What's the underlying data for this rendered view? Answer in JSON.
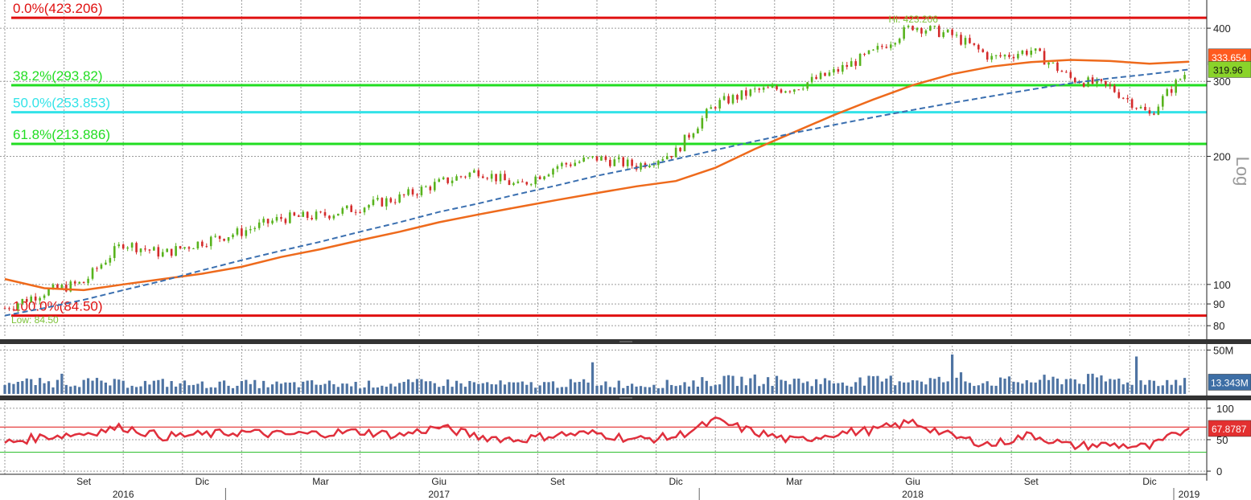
{
  "chart_data": [
    {
      "type": "candlestick",
      "panel": "price",
      "scale": "log",
      "scale_label": "Log",
      "ylim": [
        75,
        450
      ],
      "y_ticks": [
        80,
        90,
        100,
        200,
        300,
        400
      ],
      "grid": true,
      "x": [
        "2016-07",
        "2016-08",
        "2016-09",
        "2016-10",
        "2016-11",
        "2016-12",
        "2017-01",
        "2017-02",
        "2017-03",
        "2017-04",
        "2017-05",
        "2017-06",
        "2017-07",
        "2017-08",
        "2017-09",
        "2017-10",
        "2017-11",
        "2017-12",
        "2018-01",
        "2018-02",
        "2018-03",
        "2018-04",
        "2018-05",
        "2018-06",
        "2018-07",
        "2018-08",
        "2018-09",
        "2018-10",
        "2018-11",
        "2018-12",
        "2019-01"
      ],
      "series": [
        {
          "name": "Price",
          "values": [
            88,
            96,
            101,
            125,
            118,
            126,
            133,
            143,
            145,
            152,
            160,
            173,
            185,
            170,
            190,
            198,
            190,
            205,
            265,
            285,
            290,
            315,
            350,
            405,
            385,
            340,
            355,
            305,
            290,
            250,
            319.96
          ]
        },
        {
          "values": [
            103,
            98,
            97,
            100,
            103,
            106,
            110,
            116,
            121,
            127,
            133,
            140,
            146,
            152,
            158,
            164,
            170,
            175,
            188,
            208,
            228,
            250,
            272,
            294,
            312,
            325,
            333,
            337,
            335,
            330,
            333.65
          ]
        },
        {
          "values": [
            84.5,
            88,
            92,
            97,
            102,
            108,
            114,
            120,
            126,
            133,
            140,
            148,
            155,
            163,
            171,
            180,
            188,
            197,
            207,
            217,
            227,
            237,
            247,
            257,
            267,
            277,
            287,
            297,
            305,
            312,
            319.96
          ]
        }
      ],
      "fib_levels": [
        {
          "label": "0.0%(423.206)",
          "value": 423.206,
          "color": "#e01010"
        },
        {
          "label": "38.2%(293.82)",
          "value": 293.82,
          "color": "#22dd22"
        },
        {
          "label": "50.0%(253.853)",
          "value": 253.853,
          "color": "#33e3e8"
        },
        {
          "label": "61.8%(213.886)",
          "value": 213.886,
          "color": "#22dd22"
        },
        {
          "label": "100.0%(84.50)",
          "value": 84.5,
          "color": "#e01010"
        }
      ],
      "annotations": [
        {
          "text": "Hi: 423.206",
          "x": "2018-06",
          "y": 423.206
        },
        {
          "text": "Low: 84.50",
          "x": "2016-07",
          "y": 84.5
        }
      ],
      "last_value_tags": [
        {
          "text": "333.654",
          "value": 333.654,
          "color": "#ff5a1f"
        },
        {
          "text": "319.96",
          "value": 319.96,
          "color": "#8ad32a"
        }
      ]
    },
    {
      "type": "bar",
      "panel": "volume",
      "ylim": [
        0,
        55
      ],
      "y_ticks": [
        {
          "value": 50,
          "label": "50M"
        }
      ],
      "x": [
        "2016-07",
        "2016-08",
        "2016-09",
        "2016-10",
        "2016-11",
        "2016-12",
        "2017-01",
        "2017-02",
        "2017-03",
        "2017-04",
        "2017-05",
        "2017-06",
        "2017-07",
        "2017-08",
        "2017-09",
        "2017-10",
        "2017-11",
        "2017-12",
        "2018-01",
        "2018-02",
        "2018-03",
        "2018-04",
        "2018-05",
        "2018-06",
        "2018-07",
        "2018-08",
        "2018-09",
        "2018-10",
        "2018-11",
        "2018-12",
        "2019-01"
      ],
      "series": [
        {
          "values": [
            14,
            12,
            13,
            11,
            12,
            10,
            11,
            10,
            11,
            10,
            11,
            12,
            11,
            10,
            11,
            12,
            10,
            11,
            14,
            15,
            14,
            13,
            14,
            16,
            14,
            13,
            14,
            16,
            15,
            14,
            13.343
          ]
        }
      ],
      "last_value_tags": [
        {
          "text": "13.343M",
          "value": 13.343,
          "color": "#3d6ea5"
        }
      ]
    },
    {
      "type": "line",
      "panel": "rsi",
      "ylim": [
        -5,
        110
      ],
      "y_ticks": [
        0,
        50,
        100
      ],
      "reference_lines": [
        {
          "value": 70,
          "color": "#e01010"
        },
        {
          "value": 30,
          "color": "#22bb22"
        }
      ],
      "x": [
        "2016-07",
        "2016-08",
        "2016-09",
        "2016-10",
        "2016-11",
        "2016-12",
        "2017-01",
        "2017-02",
        "2017-03",
        "2017-04",
        "2017-05",
        "2017-06",
        "2017-07",
        "2017-08",
        "2017-09",
        "2017-10",
        "2017-11",
        "2017-12",
        "2018-01",
        "2018-02",
        "2018-03",
        "2018-04",
        "2018-05",
        "2018-06",
        "2018-07",
        "2018-08",
        "2018-09",
        "2018-10",
        "2018-11",
        "2018-12",
        "2019-01"
      ],
      "series": [
        {
          "values": [
            45,
            55,
            60,
            70,
            55,
            58,
            62,
            58,
            60,
            63,
            57,
            70,
            55,
            50,
            58,
            60,
            50,
            55,
            80,
            62,
            48,
            60,
            65,
            78,
            55,
            42,
            58,
            40,
            42,
            38,
            67.8787
          ]
        }
      ],
      "last_value_tags": [
        {
          "text": "67.8787",
          "value": 67.8787,
          "color": "#e33030"
        }
      ]
    }
  ],
  "x_axis": {
    "month_labels": [
      {
        "label": "Set",
        "x": "2016-09"
      },
      {
        "label": "Dic",
        "x": "2016-12"
      },
      {
        "label": "Mar",
        "x": "2017-03"
      },
      {
        "label": "Giu",
        "x": "2017-06"
      },
      {
        "label": "Set",
        "x": "2017-09"
      },
      {
        "label": "Dic",
        "x": "2017-12"
      },
      {
        "label": "Mar",
        "x": "2018-03"
      },
      {
        "label": "Giu",
        "x": "2018-06"
      },
      {
        "label": "Set",
        "x": "2018-09"
      },
      {
        "label": "Dic",
        "x": "2018-12"
      }
    ],
    "year_labels": [
      {
        "label": "2016",
        "x": "2016-10"
      },
      {
        "label": "2017",
        "x": "2017-06"
      },
      {
        "label": "2018",
        "x": "2018-06"
      },
      {
        "label": "2019",
        "x": "2019-01"
      }
    ]
  }
}
